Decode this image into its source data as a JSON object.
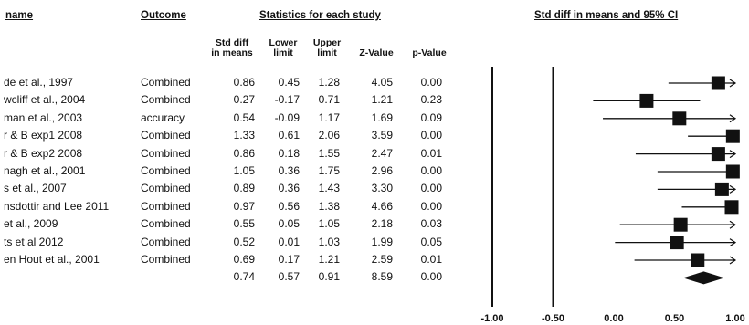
{
  "headers": {
    "name": "name",
    "outcome": "Outcome",
    "stats": "Statistics for each study",
    "plot": "Std diff in means and 95% CI"
  },
  "subheaders": {
    "std_diff": [
      "Std diff",
      "in means"
    ],
    "lower": [
      "Lower",
      "limit"
    ],
    "upper": [
      "Upper",
      "limit"
    ],
    "z": "Z-Value",
    "p": "p-Value"
  },
  "chart_data": {
    "type": "table",
    "xlim": [
      -1.0,
      1.0
    ],
    "tick_labels": [
      "-1.00",
      "-0.50",
      "0.00",
      "0.50",
      "1.00"
    ],
    "tick_values": [
      -1.0,
      -0.5,
      0.0,
      0.5,
      1.0
    ],
    "studies": [
      {
        "name": "de et al., 1997",
        "outcome": "Combined",
        "std_diff": "0.86",
        "lower": "0.45",
        "upper": "1.28",
        "z": "4.05",
        "p": "0.00"
      },
      {
        "name": "wcliff et al., 2004",
        "outcome": "Combined",
        "std_diff": "0.27",
        "lower": "-0.17",
        "upper": "0.71",
        "z": "1.21",
        "p": "0.23"
      },
      {
        "name": "man et al., 2003",
        "outcome": "accuracy",
        "std_diff": "0.54",
        "lower": "-0.09",
        "upper": "1.17",
        "z": "1.69",
        "p": "0.09"
      },
      {
        "name": "r & B exp1 2008",
        "outcome": "Combined",
        "std_diff": "1.33",
        "lower": "0.61",
        "upper": "2.06",
        "z": "3.59",
        "p": "0.00"
      },
      {
        "name": "r & B exp2 2008",
        "outcome": "Combined",
        "std_diff": "0.86",
        "lower": "0.18",
        "upper": "1.55",
        "z": "2.47",
        "p": "0.01"
      },
      {
        "name": "nagh et al., 2001",
        "outcome": "Combined",
        "std_diff": "1.05",
        "lower": "0.36",
        "upper": "1.75",
        "z": "2.96",
        "p": "0.00"
      },
      {
        "name": "s et al., 2007",
        "outcome": "Combined",
        "std_diff": "0.89",
        "lower": "0.36",
        "upper": "1.43",
        "z": "3.30",
        "p": "0.00"
      },
      {
        "name": "nsdottir and Lee 2011",
        "outcome": "Combined",
        "std_diff": "0.97",
        "lower": "0.56",
        "upper": "1.38",
        "z": "4.66",
        "p": "0.00"
      },
      {
        "name": "et al., 2009",
        "outcome": "Combined",
        "std_diff": "0.55",
        "lower": "0.05",
        "upper": "1.05",
        "z": "2.18",
        "p": "0.03"
      },
      {
        "name": "ts et al 2012",
        "outcome": "Combined",
        "std_diff": "0.52",
        "lower": "0.01",
        "upper": "1.03",
        "z": "1.99",
        "p": "0.05"
      },
      {
        "name": "en Hout et al., 2001",
        "outcome": "Combined",
        "std_diff": "0.69",
        "lower": "0.17",
        "upper": "1.21",
        "z": "2.59",
        "p": "0.01"
      }
    ],
    "summary": {
      "std_diff": "0.74",
      "lower": "0.57",
      "upper": "0.91",
      "z": "8.59",
      "p": "0.00"
    }
  }
}
